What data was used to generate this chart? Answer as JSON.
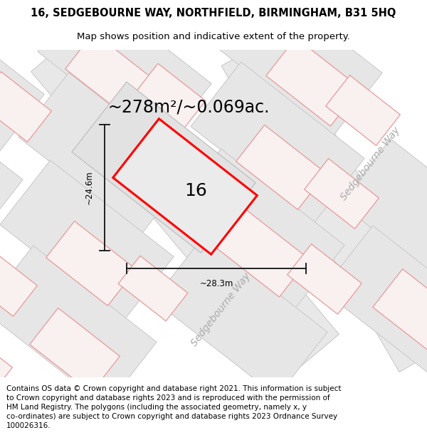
{
  "title": "16, SEDGEBOURNE WAY, NORTHFIELD, BIRMINGHAM, B31 5HQ",
  "subtitle": "Map shows position and indicative extent of the property.",
  "area_text": "~278m²/~0.069ac.",
  "label_16": "16",
  "dim_width": "~28.3m",
  "dim_height": "~24.6m",
  "road_label": "Sedgebourne Way",
  "footer": "Contains OS data © Crown copyright and database right 2021. This information is subject\nto Crown copyright and database rights 2023 and is reproduced with the permission of\nHM Land Registry. The polygons (including the associated geometry, namely x, y\nco-ordinates) are subject to Crown copyright and database rights 2023 Ordnance Survey\n100026316.",
  "bg_color": "#f5f5f5",
  "tile_face": "#e6e6e6",
  "tile_edge": "#cccccc",
  "road_face": "#f0f0f0",
  "plot_edge": "#ff0000",
  "plot_face": "#ebebeb",
  "neigh_edge": "#e89090",
  "neigh_face": "#f9f0f0",
  "dim_color": "#111111",
  "title_fontsize": 10.5,
  "subtitle_fontsize": 9.5,
  "area_fontsize": 17,
  "label_fontsize": 18,
  "road_fontsize": 10,
  "footer_fontsize": 7.5
}
